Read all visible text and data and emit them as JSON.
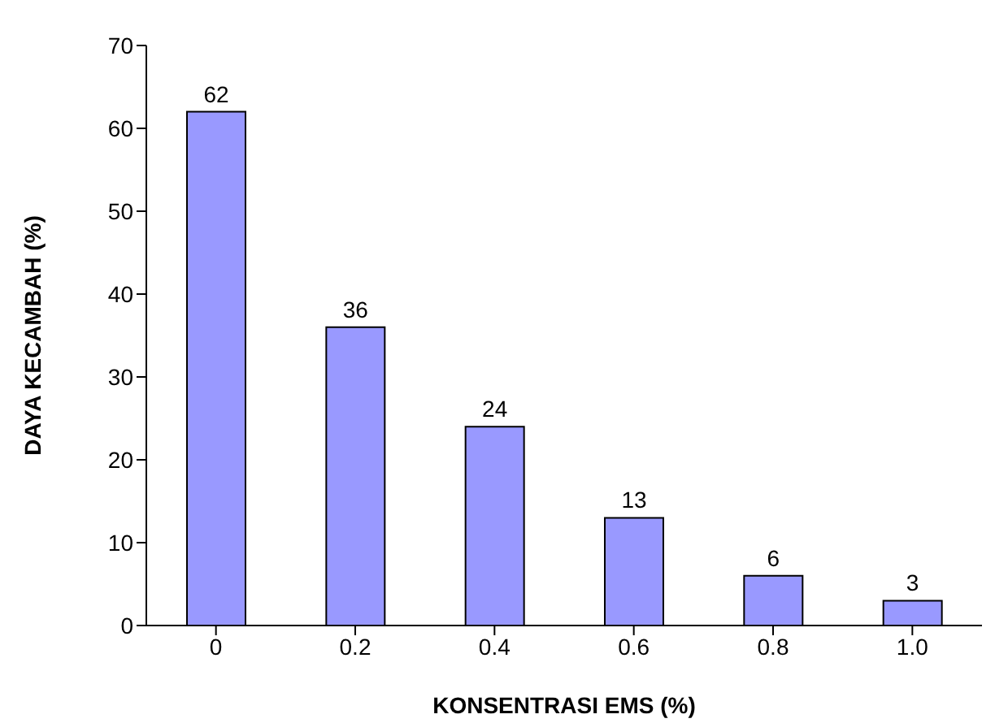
{
  "chart_data": {
    "type": "bar",
    "xlabel": "KONSENTRASI EMS (%)",
    "ylabel": "DAYA KECAMBAH  (%)",
    "categories": [
      "0",
      "0.2",
      "0.4",
      "0.6",
      "0.8",
      "1.0"
    ],
    "values": [
      62,
      36,
      24,
      13,
      6,
      3
    ],
    "color": "#9999ff",
    "ylim": [
      0,
      70
    ],
    "yticks": [
      0,
      10,
      20,
      30,
      40,
      50,
      60,
      70
    ],
    "grid": false,
    "data_labels": true
  }
}
